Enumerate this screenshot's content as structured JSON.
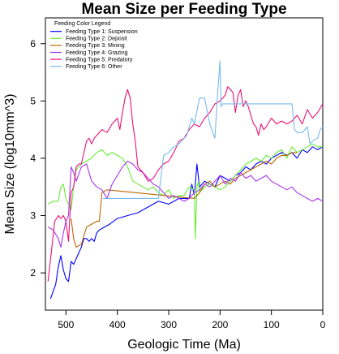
{
  "chart_data": {
    "type": "line",
    "title": "Mean Size per Feeding Type",
    "xlabel": "Geologic Time (Ma)",
    "ylabel": "Mean Size (log10mm^3)",
    "xlim": [
      540,
      0
    ],
    "ylim": [
      1.35,
      6.45
    ],
    "xticks": [
      500,
      400,
      300,
      200,
      100,
      0
    ],
    "yticks": [
      2,
      3,
      4,
      5,
      6
    ],
    "grid": false,
    "legend": {
      "title": "Feeding Color Legend",
      "position": "top-left"
    },
    "series": [
      {
        "name": "Feeding Type 1: Suspension",
        "color": "#0000ff",
        "x": [
          530,
          520,
          515,
          510,
          505,
          500,
          495,
          490,
          485,
          480,
          475,
          470,
          465,
          460,
          455,
          450,
          445,
          440,
          435,
          425,
          415,
          400,
          380,
          360,
          340,
          320,
          300,
          280,
          260,
          255,
          250,
          245,
          240,
          230,
          220,
          210,
          200,
          190,
          180,
          170,
          160,
          150,
          140,
          130,
          120,
          110,
          100,
          90,
          80,
          70,
          60,
          50,
          40,
          30,
          20,
          10,
          0
        ],
        "y": [
          1.55,
          1.8,
          2.1,
          2.3,
          2.05,
          1.9,
          1.85,
          2.2,
          2.15,
          2.25,
          2.35,
          2.45,
          2.6,
          2.6,
          2.55,
          2.6,
          2.55,
          2.7,
          2.75,
          2.8,
          2.85,
          2.95,
          3.0,
          3.05,
          3.15,
          3.25,
          3.2,
          3.3,
          3.3,
          3.55,
          3.35,
          3.9,
          3.5,
          3.6,
          3.55,
          3.5,
          3.7,
          3.65,
          3.6,
          3.7,
          3.75,
          3.85,
          3.8,
          3.9,
          3.95,
          3.9,
          4.0,
          4.05,
          4.1,
          4.05,
          4.1,
          4.0,
          4.15,
          4.1,
          4.2,
          4.15,
          4.2
        ]
      },
      {
        "name": "Feeding Type 2: Deposit",
        "color": "#66ee33",
        "x": [
          535,
          525,
          515,
          510,
          505,
          500,
          495,
          490,
          485,
          480,
          470,
          460,
          450,
          440,
          430,
          420,
          410,
          400,
          390,
          380,
          370,
          360,
          350,
          340,
          330,
          320,
          310,
          300,
          290,
          280,
          270,
          260,
          250,
          248,
          245,
          242,
          240,
          230,
          220,
          200,
          190,
          180,
          170,
          160,
          150,
          140,
          130,
          120,
          110,
          100,
          90,
          80,
          70,
          60,
          50,
          40,
          30,
          20,
          10,
          0
        ],
        "y": [
          3.2,
          3.25,
          3.25,
          3.5,
          3.55,
          3.3,
          3.2,
          3.1,
          3.5,
          3.8,
          3.9,
          3.95,
          4.0,
          4.1,
          4.15,
          4.05,
          4.1,
          4.05,
          4.0,
          3.85,
          3.6,
          3.55,
          3.5,
          3.45,
          3.5,
          3.4,
          3.35,
          3.45,
          3.3,
          3.35,
          3.35,
          3.5,
          3.45,
          2.6,
          3.5,
          3.6,
          3.4,
          3.5,
          3.55,
          3.45,
          3.5,
          3.6,
          3.7,
          3.8,
          3.9,
          3.95,
          4.0,
          3.95,
          4.05,
          4.0,
          4.1,
          4.15,
          4.0,
          4.2,
          4.1,
          4.15,
          4.2,
          4.25,
          4.2,
          4.2
        ]
      },
      {
        "name": "Feeding Type 3: Mining",
        "color": "#bb6600",
        "x": [
          490,
          485,
          480,
          470,
          460,
          450,
          440,
          435,
          430,
          420,
          250,
          240,
          230,
          220,
          210,
          200,
          190,
          180,
          170,
          160,
          150,
          140,
          130,
          120,
          110,
          100,
          90,
          80,
          70,
          60,
          50
        ],
        "y": [
          2.95,
          2.6,
          2.45,
          2.5,
          2.8,
          2.85,
          2.9,
          2.9,
          3.4,
          3.45,
          3.3,
          3.4,
          3.55,
          3.6,
          3.5,
          3.55,
          3.6,
          3.55,
          3.65,
          3.7,
          3.75,
          3.8,
          3.85,
          3.9,
          3.95,
          3.9,
          4.0,
          4.05,
          4.05,
          4.1,
          4.1
        ]
      },
      {
        "name": "Feeding Type 4: Grazing",
        "color": "#aa33ee",
        "x": [
          535,
          525,
          515,
          510,
          505,
          500,
          495,
          490,
          485,
          480,
          470,
          460,
          450,
          440,
          430,
          420,
          410,
          400,
          390,
          380,
          370,
          360,
          350,
          340,
          330,
          320,
          310,
          300,
          290,
          280,
          270,
          260,
          250,
          240,
          230,
          220,
          210,
          200,
          190,
          180,
          170,
          160,
          150,
          140,
          130,
          120,
          110,
          100,
          90,
          80,
          70,
          60,
          50,
          40,
          30,
          20,
          10,
          0
        ],
        "y": [
          2.8,
          2.75,
          2.6,
          2.45,
          2.7,
          2.9,
          3.0,
          3.85,
          3.75,
          3.6,
          3.85,
          3.9,
          3.6,
          3.5,
          3.45,
          3.3,
          3.55,
          3.7,
          3.85,
          3.95,
          3.9,
          3.8,
          3.75,
          3.65,
          3.55,
          3.5,
          3.4,
          3.3,
          3.35,
          3.3,
          3.25,
          3.3,
          3.4,
          3.45,
          3.55,
          3.5,
          3.6,
          3.7,
          3.55,
          3.65,
          3.6,
          3.75,
          3.65,
          3.7,
          3.6,
          3.65,
          3.7,
          3.6,
          3.55,
          3.5,
          3.45,
          3.5,
          3.4,
          3.35,
          3.3,
          3.25,
          3.3,
          3.25
        ]
      },
      {
        "name": "Feeding Type 5: Predatory",
        "color": "#ee1177",
        "x": [
          535,
          528,
          522,
          518,
          515,
          510,
          505,
          500,
          495,
          490,
          485,
          480,
          475,
          470,
          465,
          460,
          455,
          450,
          445,
          440,
          430,
          420,
          410,
          400,
          395,
          390,
          385,
          380,
          375,
          370,
          365,
          360,
          350,
          340,
          330,
          320,
          310,
          300,
          290,
          280,
          270,
          260,
          250,
          240,
          230,
          220,
          210,
          200,
          195,
          190,
          185,
          180,
          175,
          170,
          165,
          160,
          155,
          150,
          145,
          140,
          135,
          130,
          125,
          120,
          115,
          110,
          100,
          90,
          80,
          70,
          60,
          50,
          40,
          30,
          20,
          10,
          0
        ],
        "y": [
          1.85,
          2.4,
          2.9,
          2.95,
          3.0,
          2.95,
          3.0,
          2.9,
          2.55,
          3.4,
          3.5,
          3.85,
          3.9,
          3.9,
          4.1,
          4.3,
          4.35,
          4.25,
          4.35,
          4.4,
          4.5,
          4.45,
          4.6,
          4.7,
          4.5,
          4.8,
          5.05,
          5.2,
          5.05,
          4.6,
          4.3,
          3.85,
          3.75,
          3.6,
          3.65,
          3.8,
          3.9,
          3.95,
          4.1,
          4.3,
          4.35,
          4.5,
          4.6,
          4.55,
          4.7,
          4.8,
          4.95,
          5.0,
          5.05,
          5.1,
          5.25,
          5.2,
          5.15,
          4.8,
          5.1,
          5.2,
          4.9,
          5.0,
          4.9,
          4.75,
          4.6,
          4.55,
          4.4,
          4.6,
          4.5,
          4.55,
          4.7,
          4.6,
          4.65,
          4.6,
          4.65,
          4.75,
          4.6,
          4.85,
          4.7,
          4.8,
          4.95
        ]
      },
      {
        "name": "Feeding Type 6: Other",
        "color": "#77bbee",
        "x": [
          428,
          420,
          400,
          380,
          360,
          340,
          320,
          310,
          300,
          290,
          280,
          270,
          265,
          260,
          255,
          250,
          240,
          235,
          230,
          220,
          210,
          205,
          200,
          198,
          195,
          190,
          185,
          180,
          170,
          160,
          150,
          140,
          130,
          120,
          110,
          100,
          90,
          80,
          70,
          60,
          55,
          50,
          40,
          30,
          25,
          20,
          10,
          5,
          0
        ],
        "y": [
          3.3,
          3.3,
          3.3,
          3.3,
          3.3,
          3.3,
          3.3,
          4.05,
          4.1,
          4.2,
          4.25,
          4.35,
          4.4,
          4.55,
          4.7,
          4.6,
          5.05,
          5.05,
          5.05,
          4.6,
          4.35,
          5.1,
          5.7,
          4.9,
          4.95,
          4.95,
          4.95,
          4.95,
          4.95,
          4.95,
          4.95,
          4.95,
          4.95,
          4.95,
          4.95,
          4.95,
          4.95,
          4.95,
          4.95,
          4.95,
          4.5,
          4.45,
          4.45,
          4.55,
          4.25,
          4.3,
          4.35,
          4.5,
          4.55
        ]
      }
    ]
  }
}
